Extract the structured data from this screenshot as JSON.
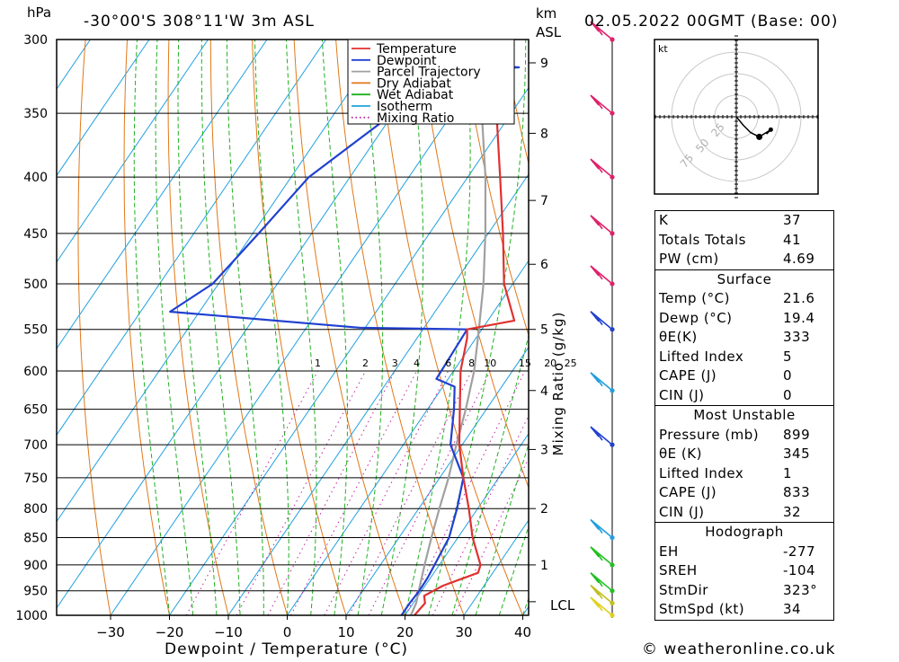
{
  "header": {
    "pressure_unit": "hPa",
    "location": "-30°00'S 308°11'W 3m ASL",
    "km_label": "km",
    "asl_label": "ASL",
    "datetime": "02.05.2022 00GMT (Base: 00)"
  },
  "footer": {
    "credit": "© weatheronline.co.uk"
  },
  "hodograph": {
    "unit_label": "kt",
    "ring_labels": [
      "25",
      "50",
      "75"
    ],
    "points": [
      [
        0,
        0
      ],
      [
        10,
        -12
      ],
      [
        20,
        -22
      ],
      [
        32,
        -28
      ],
      [
        48,
        -18
      ],
      [
        42,
        -24
      ]
    ]
  },
  "indices": {
    "general": [
      {
        "label": "K",
        "value": "37"
      },
      {
        "label": "Totals Totals",
        "value": "41"
      },
      {
        "label": "PW (cm)",
        "value": "4.69"
      }
    ],
    "surface": {
      "title": "Surface",
      "rows": [
        {
          "label": "Temp (°C)",
          "value": "21.6"
        },
        {
          "label": "Dewp (°C)",
          "value": "19.4"
        },
        {
          "label": "θE(K)",
          "value": "333"
        },
        {
          "label": "Lifted Index",
          "value": "5"
        },
        {
          "label": "CAPE (J)",
          "value": "0"
        },
        {
          "label": "CIN (J)",
          "value": "0"
        }
      ]
    },
    "most_unstable": {
      "title": "Most Unstable",
      "rows": [
        {
          "label": "Pressure (mb)",
          "value": "899"
        },
        {
          "label": "θE (K)",
          "value": "345"
        },
        {
          "label": "Lifted Index",
          "value": "1"
        },
        {
          "label": "CAPE (J)",
          "value": "833"
        },
        {
          "label": "CIN (J)",
          "value": "32"
        }
      ]
    },
    "hodograph": {
      "title": "Hodograph",
      "rows": [
        {
          "label": "EH",
          "value": "-277"
        },
        {
          "label": "SREH",
          "value": "-104"
        },
        {
          "label": "StmDir",
          "value": "323°"
        },
        {
          "label": "StmSpd (kt)",
          "value": "34"
        }
      ]
    }
  },
  "chart_data": {
    "type": "line",
    "title": "-30°00'S 308°11'W 3m ASL",
    "xlabel": "Dewpoint / Temperature (°C)",
    "ylabel": "hPa",
    "x_ticks": [
      -30,
      -20,
      -10,
      0,
      10,
      20,
      30,
      40
    ],
    "pressure_levels": [
      300,
      350,
      400,
      450,
      500,
      550,
      600,
      650,
      700,
      750,
      800,
      850,
      900,
      950,
      1000
    ],
    "km_ticks": [
      {
        "km": 1,
        "p": 900
      },
      {
        "km": 2,
        "p": 800
      },
      {
        "km": 3,
        "p": 707
      },
      {
        "km": 4,
        "p": 625
      },
      {
        "km": 5,
        "p": 550
      },
      {
        "km": 6,
        "p": 480
      },
      {
        "km": 7,
        "p": 420
      },
      {
        "km": 8,
        "p": 365
      },
      {
        "km": 9,
        "p": 315
      }
    ],
    "lcl_label": "LCL",
    "lcl_pressure": 972,
    "mixing_ratio_label": "Mixing Ratio (g/kg)",
    "mixing_ratio_values": [
      1,
      2,
      3,
      4,
      6,
      8,
      10,
      15,
      20,
      25
    ],
    "legend": [
      "Temperature",
      "Dewpoint",
      "Parcel Trajectory",
      "Dry Adiabat",
      "Wet Adiabat",
      "Isotherm",
      "Mixing Ratio"
    ],
    "legend_position": "top-center",
    "colors": {
      "temperature": "#e03030",
      "dewpoint": "#2040d0",
      "parcel": "#a0a0a0",
      "dry_adiabat": "#e07818",
      "wet_adiabat": "#20b020",
      "isotherm": "#20a0e0",
      "mixing_ratio": "#c020a0"
    },
    "series": [
      {
        "name": "Temperature",
        "points": [
          [
            1000,
            21.6
          ],
          [
            975,
            22
          ],
          [
            960,
            21
          ],
          [
            940,
            23
          ],
          [
            915,
            27.5
          ],
          [
            900,
            27
          ],
          [
            850,
            22.5
          ],
          [
            800,
            18.5
          ],
          [
            750,
            14
          ],
          [
            700,
            9.5
          ],
          [
            650,
            5.5
          ],
          [
            600,
            1.2
          ],
          [
            560,
            -1.5
          ],
          [
            550,
            -2.5
          ],
          [
            540,
            4.5
          ],
          [
            500,
            -1.5
          ],
          [
            450,
            -7.5
          ],
          [
            400,
            -14.5
          ],
          [
            350,
            -22.5
          ],
          [
            320,
            -28
          ],
          [
            300,
            -31.5
          ]
        ]
      },
      {
        "name": "Dewpoint",
        "points": [
          [
            1000,
            19.4
          ],
          [
            975,
            19.4
          ],
          [
            950,
            19.6
          ],
          [
            925,
            19.5
          ],
          [
            900,
            19.2
          ],
          [
            850,
            18.5
          ],
          [
            800,
            16.5
          ],
          [
            750,
            14
          ],
          [
            700,
            8
          ],
          [
            650,
            4.5
          ],
          [
            620,
            2
          ],
          [
            610,
            -2
          ],
          [
            550,
            -2.5
          ],
          [
            548,
            -21
          ],
          [
            530,
            -55
          ],
          [
            500,
            -51
          ],
          [
            450,
            -49
          ],
          [
            400,
            -47
          ],
          [
            350,
            -40
          ],
          [
            330,
            -42
          ],
          [
            320,
            -37
          ],
          [
            318,
            -24
          ],
          [
            315,
            -37
          ],
          [
            300,
            -36
          ]
        ]
      },
      {
        "name": "Parcel Trajectory",
        "points": [
          [
            1000,
            21
          ],
          [
            975,
            20.5
          ],
          [
            950,
            19.5
          ],
          [
            900,
            17.5
          ],
          [
            850,
            15.5
          ],
          [
            800,
            13.5
          ],
          [
            750,
            11.5
          ],
          [
            700,
            9
          ],
          [
            650,
            6.5
          ],
          [
            600,
            3.5
          ],
          [
            550,
            -0.5
          ],
          [
            500,
            -5
          ],
          [
            450,
            -10.5
          ],
          [
            400,
            -17
          ],
          [
            350,
            -25
          ],
          [
            300,
            -34
          ]
        ]
      }
    ],
    "wind_barbs": [
      {
        "p": 300,
        "color": "#e0206a"
      },
      {
        "p": 350,
        "color": "#e0206a"
      },
      {
        "p": 400,
        "color": "#e0206a"
      },
      {
        "p": 450,
        "color": "#e0206a"
      },
      {
        "p": 500,
        "color": "#e0206a"
      },
      {
        "p": 550,
        "color": "#2040d0"
      },
      {
        "p": 625,
        "color": "#20a0e0"
      },
      {
        "p": 700,
        "color": "#2040d0"
      },
      {
        "p": 850,
        "color": "#20a0e0"
      },
      {
        "p": 900,
        "color": "#20c020"
      },
      {
        "p": 950,
        "color": "#20c020"
      },
      {
        "p": 975,
        "color": "#c0c020"
      },
      {
        "p": 1000,
        "color": "#e0d020"
      }
    ]
  }
}
